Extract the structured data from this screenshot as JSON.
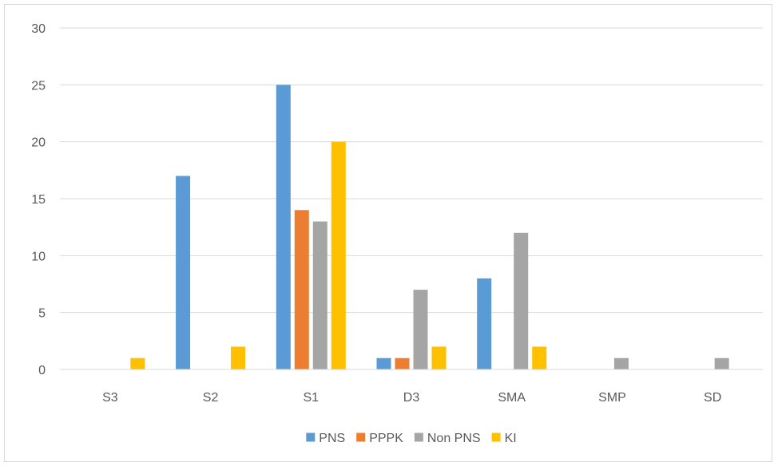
{
  "chart_data": {
    "type": "bar",
    "categories": [
      "S3",
      "S2",
      "S1",
      "D3",
      "SMA",
      "SMP",
      "SD"
    ],
    "series": [
      {
        "name": "PNS",
        "color": "#5b9bd5",
        "values": [
          0,
          17,
          25,
          1,
          8,
          0,
          0
        ]
      },
      {
        "name": "PPPK",
        "color": "#ed7d31",
        "values": [
          0,
          0,
          14,
          1,
          0,
          0,
          0
        ]
      },
      {
        "name": "Non PNS",
        "color": "#a5a5a5",
        "values": [
          0,
          0,
          13,
          7,
          12,
          1,
          1
        ]
      },
      {
        "name": "KI",
        "color": "#ffc000",
        "values": [
          1,
          2,
          20,
          2,
          2,
          0,
          0
        ]
      }
    ],
    "ylim": [
      0,
      30
    ],
    "yticks": [
      0,
      5,
      10,
      15,
      20,
      25,
      30
    ],
    "title": "",
    "xlabel": "",
    "ylabel": "",
    "grid": true,
    "legend_position": "bottom"
  }
}
